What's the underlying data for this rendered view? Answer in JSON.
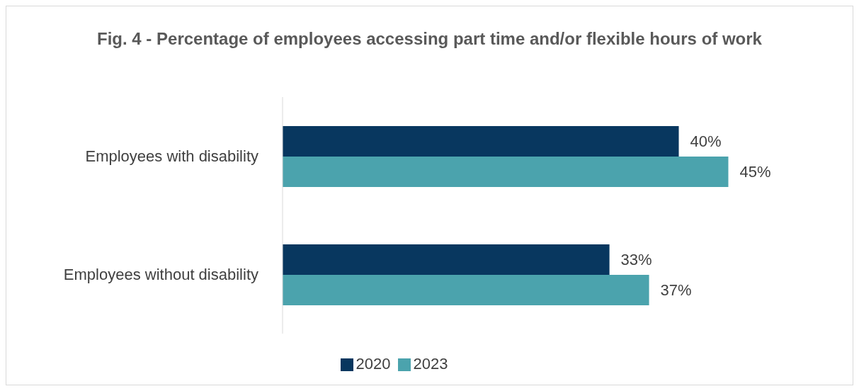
{
  "chart_data": {
    "type": "bar",
    "orientation": "horizontal",
    "title": "Fig. 4 - Percentage of employees accessing part time and/or flexible hours of work",
    "categories": [
      "Employees with disability",
      "Employees without disability"
    ],
    "series": [
      {
        "name": "2020",
        "color": "#08375f",
        "values": [
          40,
          33
        ],
        "value_labels": [
          "40%",
          "33%"
        ]
      },
      {
        "name": "2023",
        "color": "#4ba3ad",
        "values": [
          45,
          37
        ],
        "value_labels": [
          "45%",
          "37%"
        ]
      }
    ],
    "legend": "bottom"
  }
}
